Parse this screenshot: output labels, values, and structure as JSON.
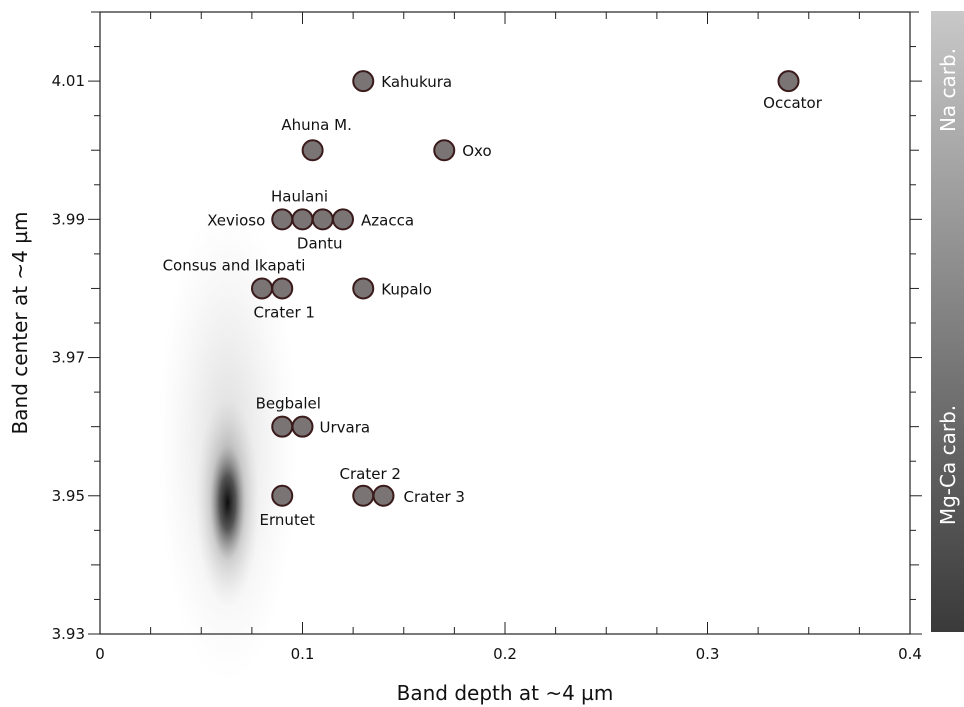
{
  "chart_data": {
    "type": "scatter",
    "xlabel": "Band depth at ~4 µm",
    "ylabel": "Band center at ~4 µm",
    "xlim": [
      0,
      0.4
    ],
    "ylim": [
      3.93,
      4.02
    ],
    "x_ticks": [
      {
        "value": 0,
        "label": "0"
      },
      {
        "value": 0.1,
        "label": "0.1"
      },
      {
        "value": 0.2,
        "label": "0.2"
      },
      {
        "value": 0.3,
        "label": "0.3"
      },
      {
        "value": 0.4,
        "label": "0.4"
      }
    ],
    "y_ticks": [
      {
        "value": 3.93,
        "label": "3.93"
      },
      {
        "value": 3.95,
        "label": "3.95"
      },
      {
        "value": 3.97,
        "label": "3.97"
      },
      {
        "value": 3.99,
        "label": "3.99"
      },
      {
        "value": 4.01,
        "label": "4.01"
      }
    ],
    "grid": false,
    "points": [
      {
        "name": "Kahukura",
        "x": 0.13,
        "y": 4.01
      },
      {
        "name": "Occator",
        "x": 0.34,
        "y": 4.01
      },
      {
        "name": "Ahuna M.",
        "x": 0.105,
        "y": 4.0
      },
      {
        "name": "Oxo",
        "x": 0.17,
        "y": 4.0
      },
      {
        "name": "Xevioso",
        "x": 0.09,
        "y": 3.99
      },
      {
        "name": "Haulani",
        "x": 0.1,
        "y": 3.99
      },
      {
        "name": "Dantu",
        "x": 0.11,
        "y": 3.99
      },
      {
        "name": "Azacca",
        "x": 0.12,
        "y": 3.99
      },
      {
        "name": "Consus and Ikapati",
        "x": 0.08,
        "y": 3.98
      },
      {
        "name": "Crater 1",
        "x": 0.09,
        "y": 3.98
      },
      {
        "name": "Kupalo",
        "x": 0.13,
        "y": 3.98
      },
      {
        "name": "Begbalel",
        "x": 0.09,
        "y": 3.96
      },
      {
        "name": "Urvara",
        "x": 0.1,
        "y": 3.96
      },
      {
        "name": "Ernutet",
        "x": 0.09,
        "y": 3.95
      },
      {
        "name": "Crater 2",
        "x": 0.13,
        "y": 3.95
      },
      {
        "name": "Crater 3",
        "x": 0.14,
        "y": 3.95
      }
    ],
    "background_density": {
      "center_x": 0.063,
      "center_y": 3.949
    },
    "side_bar": {
      "labels": [
        "Na carb.",
        "Mg-Ca carb."
      ],
      "gradient_colors": [
        "#c8c8c8",
        "#3a3a3a"
      ]
    },
    "colors": {
      "marker_fill": "#7a7474",
      "marker_stroke": "#3a1a1a"
    }
  }
}
